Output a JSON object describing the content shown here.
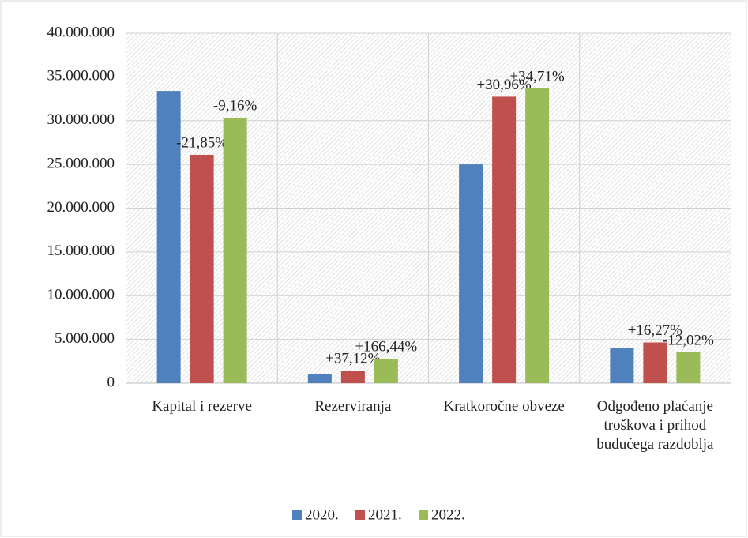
{
  "chart_data": {
    "type": "bar",
    "categories": [
      "Kapital i rezerve",
      "Rezerviranja",
      "Kratkoročne obveze",
      "Odgođeno plaćanje troškova i prihod budućega razdoblja"
    ],
    "series": [
      {
        "name": "2020.",
        "color": "#4f81bd",
        "values": [
          33400000,
          1050000,
          25000000,
          4000000
        ],
        "data_labels": [
          null,
          null,
          null,
          null
        ]
      },
      {
        "name": "2021.",
        "color": "#c0504d",
        "values": [
          26100000,
          1440000,
          32740000,
          4650000
        ],
        "data_labels": [
          "-21,85%",
          "+37,12%",
          "+30,96%",
          "+16,27%"
        ]
      },
      {
        "name": "2022.",
        "color": "#9bbb59",
        "values": [
          30340000,
          2800000,
          33680000,
          3520000
        ],
        "data_labels": [
          "-9,16%",
          "+166,44%",
          "+34,71%",
          "-12,02%"
        ]
      }
    ],
    "ylim": [
      0,
      40000000
    ],
    "yticks": [
      0,
      {
        "value": 5000000,
        "label": "5.000.000"
      },
      {
        "value": 10000000,
        "label": "10.000.000"
      },
      {
        "value": 15000000,
        "label": "15.000.000"
      },
      {
        "value": 20000000,
        "label": "20.000.000"
      },
      {
        "value": 25000000,
        "label": "25.000.000"
      },
      {
        "value": 30000000,
        "label": "30.000.000"
      },
      {
        "value": 35000000,
        "label": "35.000.000"
      },
      {
        "value": 40000000,
        "label": "40.000.000"
      }
    ],
    "grid": true,
    "legend": "bottom"
  }
}
